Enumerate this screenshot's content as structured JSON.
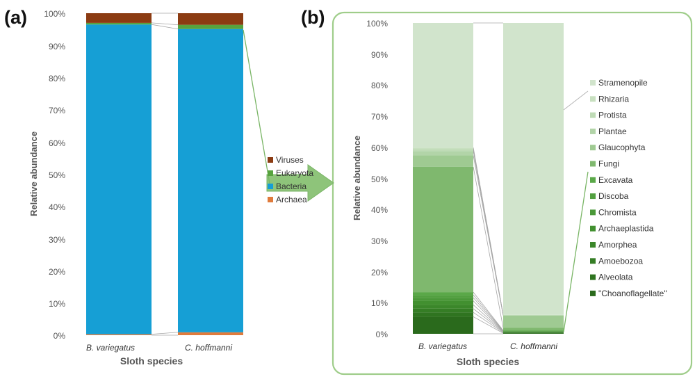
{
  "chart_data": [
    {
      "panel_label": "(a)",
      "type": "bar",
      "stacked": "percent",
      "categories": [
        "B. variegatus",
        "C. hoffmanni"
      ],
      "xlabel": "Sloth species",
      "ylabel": "Relative abundance",
      "ylim": [
        0,
        100
      ],
      "yticks": [
        "0%",
        "10%",
        "20%",
        "30%",
        "40%",
        "50%",
        "60%",
        "70%",
        "80%",
        "90%",
        "100%"
      ],
      "grid": false,
      "legend": "right",
      "series": [
        {
          "name": "Archaea",
          "color": "#e07b3c",
          "values": [
            0.3,
            0.9
          ]
        },
        {
          "name": "Bacteria",
          "color": "#169fd5",
          "values": [
            96.2,
            94.2
          ]
        },
        {
          "name": "Eukaryota",
          "color": "#57a33e",
          "values": [
            0.5,
            1.3
          ]
        },
        {
          "name": "Viruses",
          "color": "#8b3b12",
          "values": [
            3.0,
            3.6
          ]
        }
      ]
    },
    {
      "panel_label": "(b)",
      "type": "bar",
      "stacked": "percent",
      "categories": [
        "B. variegatus",
        "C. hoffmanni"
      ],
      "xlabel": "Sloth species",
      "ylabel": "Relative abundance",
      "ylim": [
        0,
        100
      ],
      "yticks": [
        "0%",
        "10%",
        "20%",
        "30%",
        "40%",
        "50%",
        "60%",
        "70%",
        "80%",
        "90%",
        "100%"
      ],
      "grid": false,
      "legend": "right",
      "series": [
        {
          "name": "\"Choanoflagellate\"",
          "color": "#2a6a1c",
          "values": [
            5.5,
            0.2
          ]
        },
        {
          "name": "Alveolata",
          "color": "#2f7420",
          "values": [
            1.4,
            0.2
          ]
        },
        {
          "name": "Amoebozoa",
          "color": "#357d25",
          "values": [
            1.2,
            0.2
          ]
        },
        {
          "name": "Amorphea",
          "color": "#3b872a",
          "values": [
            1.2,
            0.1
          ]
        },
        {
          "name": "Archaeplastida",
          "color": "#429030",
          "values": [
            1.3,
            0.1
          ]
        },
        {
          "name": "Chromista",
          "color": "#4a9838",
          "values": [
            1.0,
            0.1
          ]
        },
        {
          "name": "Discoba",
          "color": "#52a040",
          "values": [
            0.9,
            0.1
          ]
        },
        {
          "name": "Excavata",
          "color": "#5aa848",
          "values": [
            0.9,
            0.1
          ]
        },
        {
          "name": "Fungi",
          "color": "#7fb86e",
          "values": [
            40.3,
            0.8
          ]
        },
        {
          "name": "Glaucophyta",
          "color": "#9fca92",
          "values": [
            3.7,
            4.0
          ]
        },
        {
          "name": "Plantae",
          "color": "#b2d4a8",
          "values": [
            1.4,
            0.1
          ]
        },
        {
          "name": "Protista",
          "color": "#bfdbb6",
          "values": [
            0.6,
            0.1
          ]
        },
        {
          "name": "Rhizaria",
          "color": "#c8e0c0",
          "values": [
            0.5,
            0.1
          ]
        },
        {
          "name": "Stramenopile",
          "color": "#d1e4cc",
          "values": [
            40.1,
            93.8
          ]
        }
      ]
    }
  ]
}
